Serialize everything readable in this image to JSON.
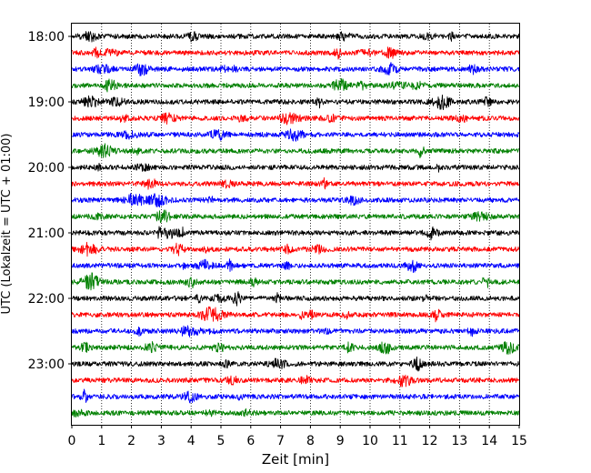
{
  "chart_data": {
    "type": "line",
    "title": "",
    "xlabel": "Zeit  [min]",
    "ylabel": "UTC (Lokalzeit = UTC + 01:00)",
    "xlim": [
      0,
      15
    ],
    "x_ticks": [
      0,
      1,
      2,
      3,
      4,
      5,
      6,
      7,
      8,
      9,
      10,
      11,
      12,
      13,
      14,
      15
    ],
    "x_tick_labels": [
      "0",
      "1",
      "2",
      "3",
      "4",
      "5",
      "6",
      "7",
      "8",
      "9",
      "10",
      "11",
      "12",
      "13",
      "14",
      "15"
    ],
    "y_axis": "time-of-day, increasing downward, one trace per 15 min",
    "y_tick_labels": [
      "18:00",
      "19:00",
      "20:00",
      "21:00",
      "22:00",
      "23:00"
    ],
    "grid": "vertical dotted lines at each minute",
    "trace_color_cycle": [
      "#000000",
      "#ff0000",
      "#0000ff",
      "#008000"
    ],
    "traces": [
      {
        "start": "18:00",
        "color": "#000000"
      },
      {
        "start": "18:15",
        "color": "#ff0000"
      },
      {
        "start": "18:30",
        "color": "#0000ff"
      },
      {
        "start": "18:45",
        "color": "#008000"
      },
      {
        "start": "19:00",
        "color": "#000000"
      },
      {
        "start": "19:15",
        "color": "#ff0000"
      },
      {
        "start": "19:30",
        "color": "#0000ff"
      },
      {
        "start": "19:45",
        "color": "#008000"
      },
      {
        "start": "20:00",
        "color": "#000000"
      },
      {
        "start": "20:15",
        "color": "#ff0000"
      },
      {
        "start": "20:30",
        "color": "#0000ff"
      },
      {
        "start": "20:45",
        "color": "#008000"
      },
      {
        "start": "21:00",
        "color": "#000000"
      },
      {
        "start": "21:15",
        "color": "#ff0000"
      },
      {
        "start": "21:30",
        "color": "#0000ff"
      },
      {
        "start": "21:45",
        "color": "#008000"
      },
      {
        "start": "22:00",
        "color": "#000000"
      },
      {
        "start": "22:15",
        "color": "#ff0000"
      },
      {
        "start": "22:30",
        "color": "#0000ff"
      },
      {
        "start": "22:45",
        "color": "#008000"
      },
      {
        "start": "23:00",
        "color": "#000000"
      },
      {
        "start": "23:15",
        "color": "#ff0000"
      },
      {
        "start": "23:30",
        "color": "#0000ff"
      },
      {
        "start": "23:45",
        "color": "#008000"
      }
    ]
  }
}
